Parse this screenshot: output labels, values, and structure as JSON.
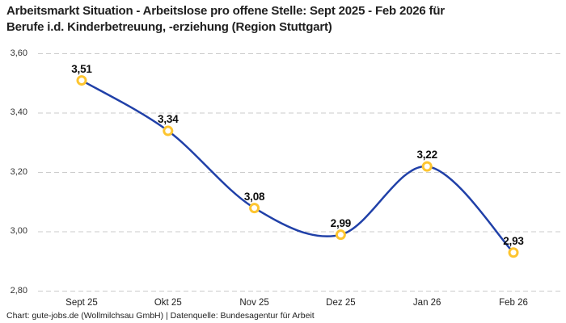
{
  "title": {
    "line1": "Arbeitsmarkt Situation - Arbeitslose pro offene Stelle: Sept 2025 - Feb 2026 für",
    "line2": "Berufe i.d. Kinderbetreuung, -erziehung (Region Stuttgart)"
  },
  "footer": "Chart: gute-jobs.de (Wollmilchsau GmbH) | Datenquelle: Bundesagentur für Arbeit",
  "chart_data": {
    "type": "line",
    "title": "Arbeitsmarkt Situation - Arbeitslose pro offene Stelle: Sept 2025 - Feb 2026 für Berufe i.d. Kinderbetreuung, -erziehung (Region Stuttgart)",
    "categories": [
      "Sept 25",
      "Okt 25",
      "Nov 25",
      "Dez 25",
      "Jan 26",
      "Feb 26"
    ],
    "values": [
      3.51,
      3.34,
      3.08,
      2.99,
      3.22,
      2.93
    ],
    "value_labels": [
      "3,51",
      "3,34",
      "3,08",
      "2,99",
      "3,22",
      "2,93"
    ],
    "xlabel": "",
    "ylabel": "",
    "ylim": [
      2.8,
      3.6
    ],
    "y_ticks": [
      2.8,
      3.0,
      3.2,
      3.4,
      3.6
    ],
    "y_tick_labels": [
      "2,80",
      "3,00",
      "3,20",
      "3,40",
      "3,60"
    ],
    "grid": "horizontal-dashed",
    "legend": "none",
    "curve": "smooth",
    "line_color": "#2040a8",
    "marker_color": "#fdc530",
    "marker_fill": "#ffffff",
    "gridline_color": "#cbcbcb"
  }
}
